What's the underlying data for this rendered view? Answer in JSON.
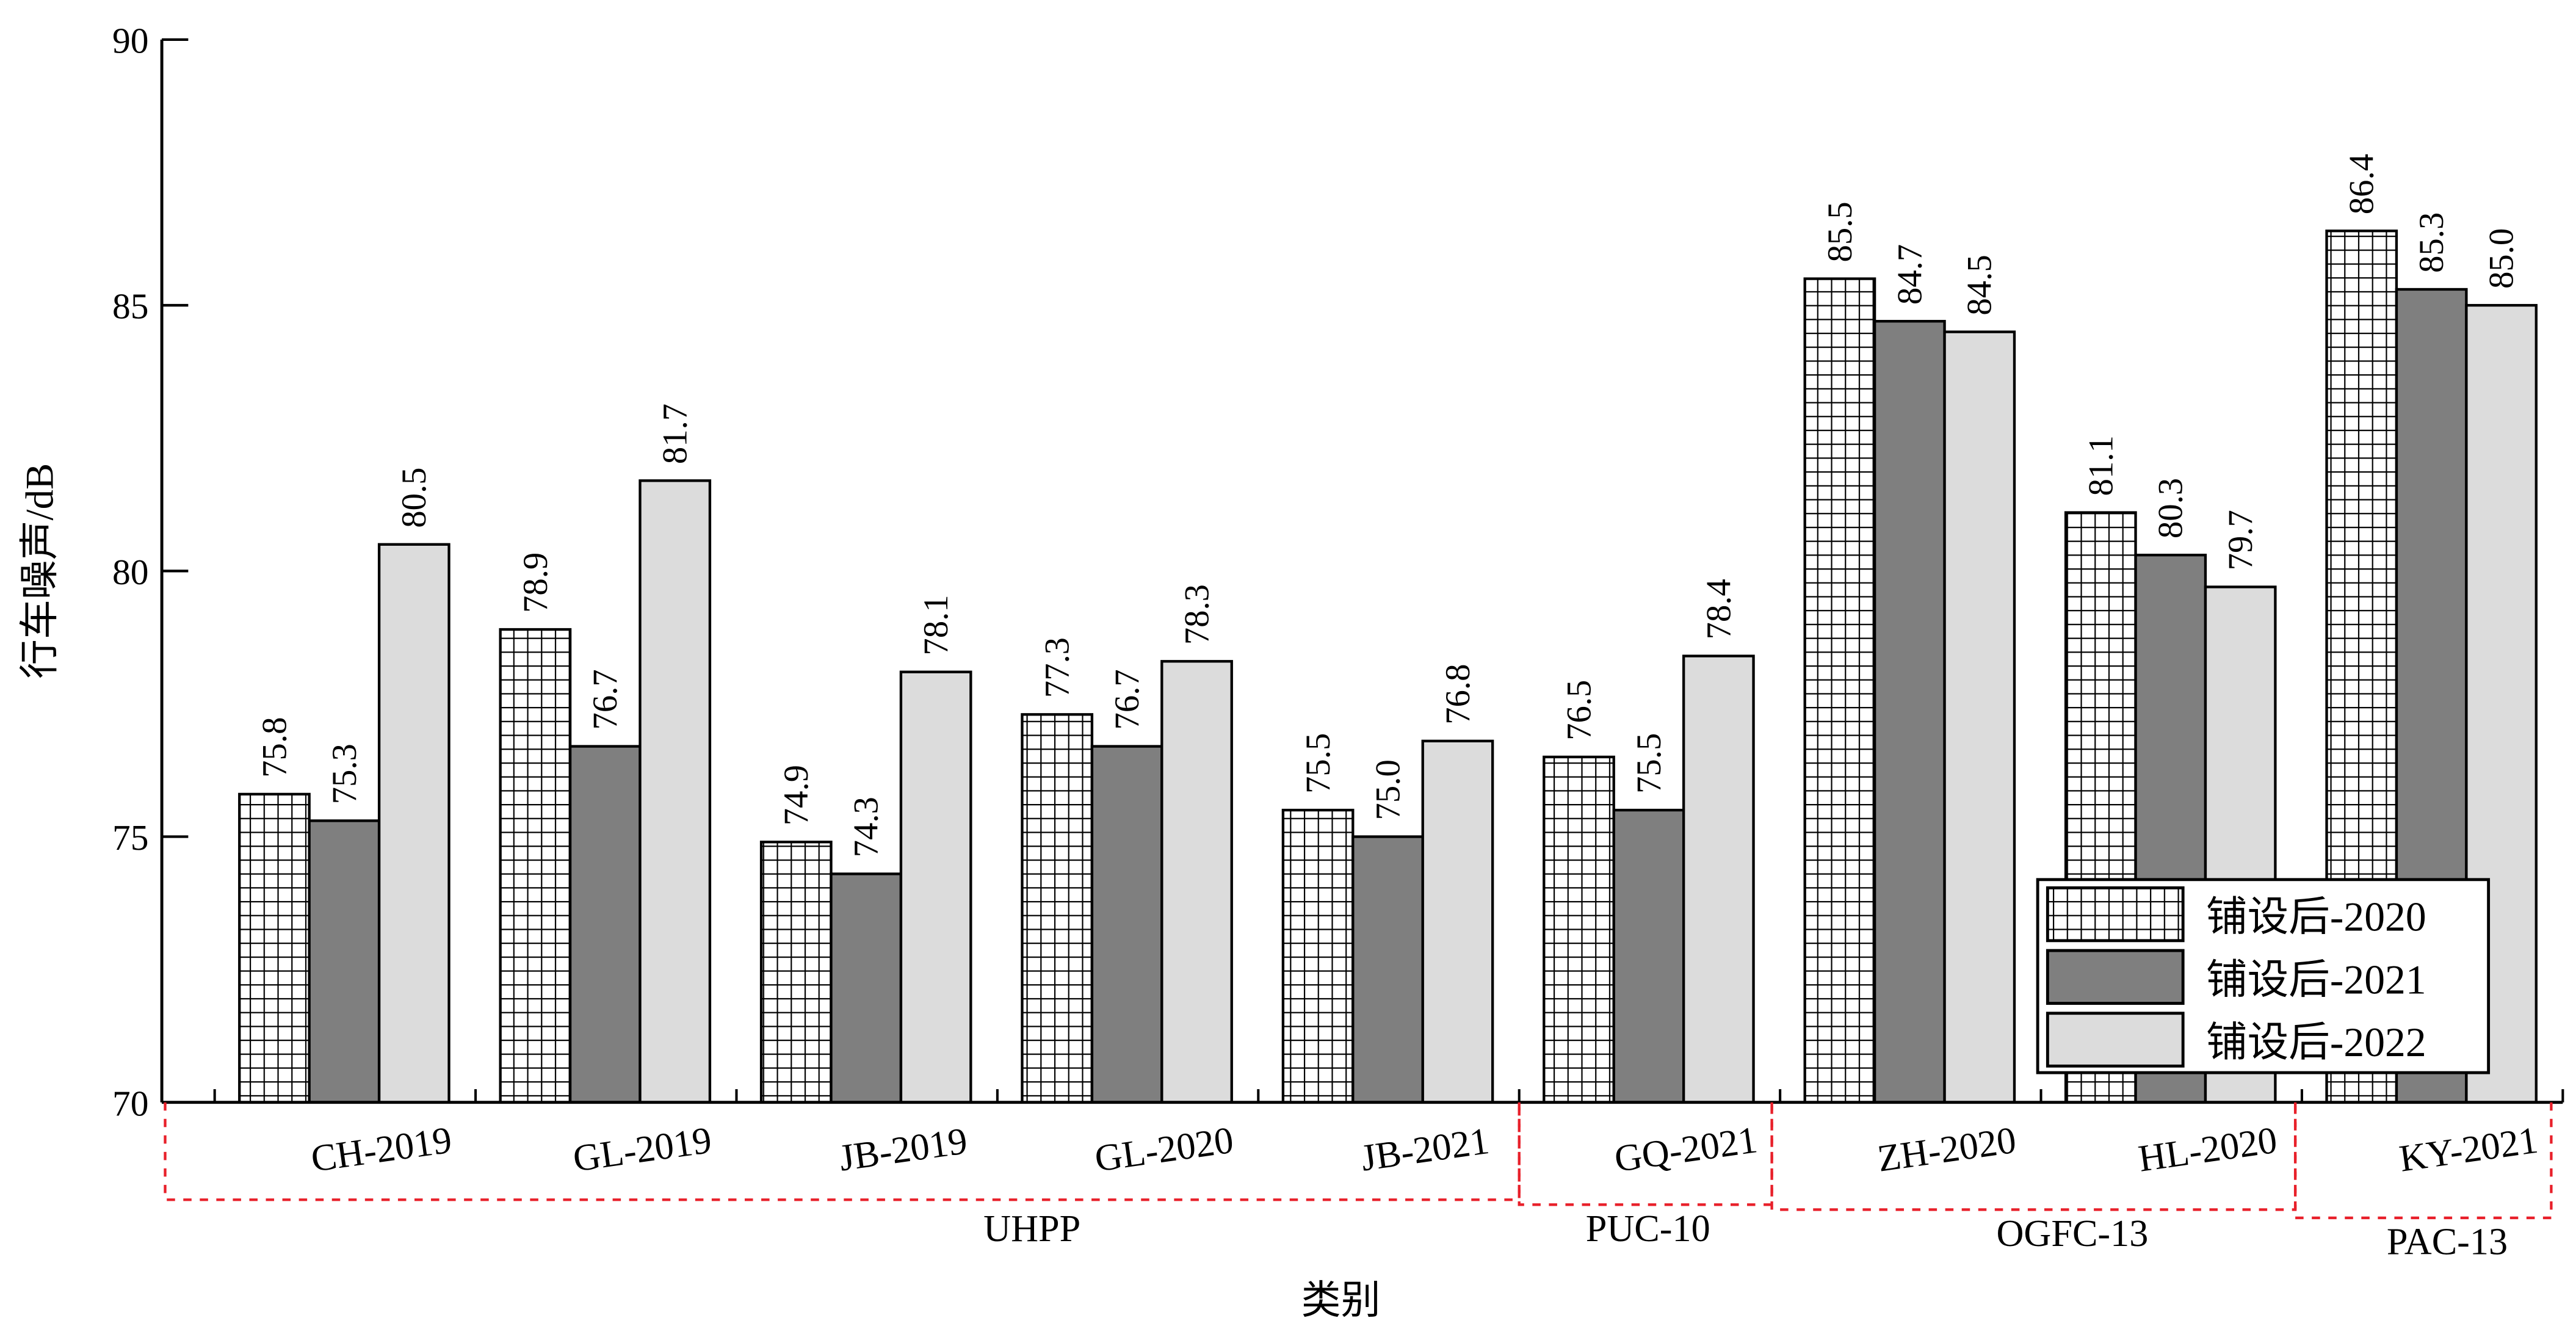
{
  "chart_data": {
    "type": "bar",
    "title": "",
    "xlabel": "类别",
    "ylabel": "行车噪声/dB",
    "ylim": [
      70,
      90
    ],
    "yticks": [
      70,
      75,
      80,
      85,
      90
    ],
    "grid": false,
    "legend_position": "bottom-right",
    "categories": [
      "CH-2019",
      "GL-2019",
      "JB-2019",
      "GL-2020",
      "JB-2021",
      "GQ-2021",
      "ZH-2020",
      "HL-2020",
      "KY-2021"
    ],
    "groups": [
      {
        "label": "UHPP",
        "categories": [
          "CH-2019",
          "GL-2019",
          "JB-2019",
          "GL-2020",
          "JB-2021"
        ]
      },
      {
        "label": "PUC-10",
        "categories": [
          "GQ-2021"
        ]
      },
      {
        "label": "OGFC-13",
        "categories": [
          "ZH-2020",
          "HL-2020"
        ]
      },
      {
        "label": "PAC-13",
        "categories": [
          "KY-2021"
        ]
      }
    ],
    "series": [
      {
        "name": "铺设后-2020",
        "pattern": "grid",
        "color": "#ffffff",
        "values": [
          75.8,
          78.9,
          74.9,
          77.3,
          75.5,
          76.5,
          85.5,
          81.1,
          86.4
        ],
        "labels": [
          "75.8",
          "78.9",
          "74.9",
          "77.3",
          "75.5",
          "76.5",
          "85.5",
          "81.1",
          "86.4"
        ]
      },
      {
        "name": "铺设后-2021",
        "pattern": "solid-dark",
        "color": "#7f7f7f",
        "values": [
          75.3,
          76.7,
          74.3,
          76.7,
          75.0,
          75.5,
          84.7,
          80.3,
          85.3
        ],
        "labels": [
          "75.3",
          "76.7",
          "74.3",
          "76.7",
          "75.0",
          "75.5",
          "84.7",
          "80.3",
          "85.3"
        ]
      },
      {
        "name": "铺设后-2022",
        "pattern": "solid-light",
        "color": "#dcdcdc",
        "values": [
          80.5,
          81.7,
          78.1,
          78.3,
          76.8,
          78.4,
          84.5,
          79.7,
          85.0
        ],
        "labels": [
          "80.5",
          "81.7",
          "78.1",
          "78.3",
          "76.8",
          "78.4",
          "84.5",
          "79.7",
          "85.0"
        ]
      }
    ],
    "group_box_color": "#e8202a"
  }
}
